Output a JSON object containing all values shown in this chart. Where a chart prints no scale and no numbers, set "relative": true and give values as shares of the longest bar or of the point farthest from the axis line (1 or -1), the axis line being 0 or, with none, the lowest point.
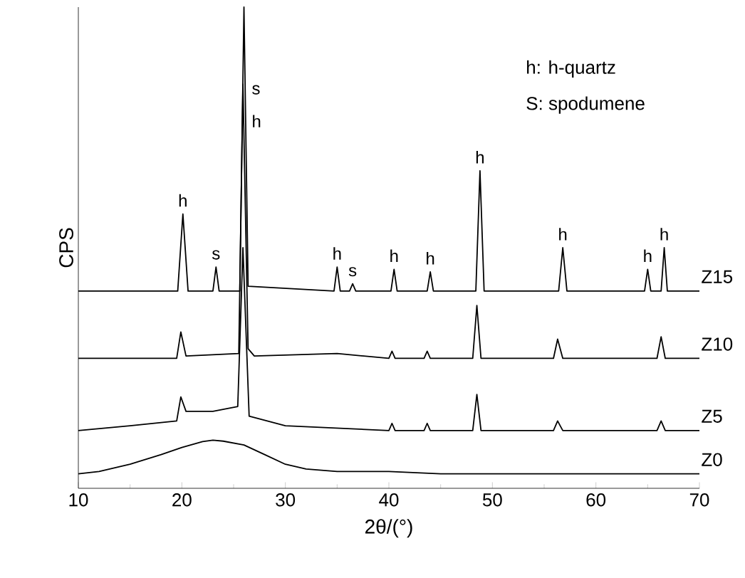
{
  "chart_data": {
    "type": "line",
    "xlabel": "2θ/(°)",
    "ylabel": "CPS",
    "relative": true,
    "xlim": [
      10,
      70
    ],
    "xticks": [
      10,
      20,
      30,
      40,
      50,
      60,
      70
    ],
    "marker": "none",
    "line_style": "solid",
    "grid": false,
    "series": [
      {
        "name": "Z0",
        "color": "#000000",
        "x": [
          10,
          12,
          15,
          18,
          20,
          22,
          23,
          24,
          26,
          28,
          30,
          32,
          35,
          40,
          45,
          50,
          55,
          60,
          65,
          70
        ],
        "values": [
          0.03,
          0.035,
          0.05,
          0.07,
          0.085,
          0.097,
          0.1,
          0.098,
          0.09,
          0.07,
          0.05,
          0.04,
          0.035,
          0.035,
          0.03,
          0.03,
          0.03,
          0.03,
          0.03,
          0.03
        ]
      },
      {
        "name": "Z5",
        "color": "#000000",
        "x": [
          10,
          15,
          19.5,
          19.9,
          20.4,
          23,
          25.4,
          25.9,
          26.5,
          30,
          40,
          40.3,
          40.6,
          43.4,
          43.7,
          44,
          48.1,
          48.5,
          48.9,
          55.9,
          56.3,
          56.8,
          65.9,
          66.3,
          66.7,
          70
        ],
        "values": [
          0.12,
          0.13,
          0.14,
          0.19,
          0.16,
          0.16,
          0.17,
          0.5,
          0.15,
          0.13,
          0.12,
          0.135,
          0.12,
          0.12,
          0.135,
          0.12,
          0.12,
          0.195,
          0.12,
          0.12,
          0.14,
          0.12,
          0.12,
          0.14,
          0.12,
          0.12
        ]
      },
      {
        "name": "Z10",
        "color": "#000000",
        "x": [
          10,
          19.5,
          19.9,
          20.4,
          25.5,
          25.9,
          26.4,
          27,
          35,
          40,
          40.3,
          40.6,
          43.4,
          43.7,
          44,
          48.1,
          48.5,
          48.9,
          55.9,
          56.3,
          56.8,
          65.9,
          66.3,
          66.7,
          70
        ],
        "values": [
          0.27,
          0.27,
          0.325,
          0.275,
          0.28,
          0.84,
          0.29,
          0.275,
          0.28,
          0.27,
          0.285,
          0.27,
          0.27,
          0.285,
          0.27,
          0.27,
          0.38,
          0.27,
          0.27,
          0.31,
          0.27,
          0.27,
          0.315,
          0.27,
          0.27
        ]
      },
      {
        "name": "Z15",
        "color": "#000000",
        "x": [
          10,
          19.6,
          20.1,
          20.6,
          23.0,
          23.3,
          23.6,
          25.6,
          26.0,
          26.4,
          34.7,
          35.0,
          35.3,
          36.2,
          36.5,
          36.8,
          40.2,
          40.5,
          40.8,
          43.7,
          44.0,
          44.3,
          48.4,
          48.8,
          49.2,
          56.4,
          56.8,
          57.2,
          64.7,
          65.0,
          65.3,
          66.3,
          66.6,
          66.9,
          70
        ],
        "values": [
          0.41,
          0.41,
          0.57,
          0.41,
          0.41,
          0.46,
          0.41,
          0.41,
          1.0,
          0.42,
          0.41,
          0.46,
          0.41,
          0.41,
          0.425,
          0.41,
          0.41,
          0.455,
          0.41,
          0.41,
          0.45,
          0.41,
          0.41,
          0.66,
          0.41,
          0.41,
          0.5,
          0.41,
          0.41,
          0.455,
          0.41,
          0.41,
          0.5,
          0.41,
          0.41
        ]
      }
    ],
    "annotations": [
      {
        "text": "h",
        "x": 20.1,
        "y": 0.57
      },
      {
        "text": "s",
        "x": 23.3,
        "y": 0.46
      },
      {
        "text": "s",
        "x": 25.9,
        "y": 0.84
      },
      {
        "text": "h",
        "x": 25.9,
        "y": 0.84
      },
      {
        "text": "h",
        "x": 35.0,
        "y": 0.46
      },
      {
        "text": "s",
        "x": 36.5,
        "y": 0.425
      },
      {
        "text": "h",
        "x": 40.5,
        "y": 0.455
      },
      {
        "text": "h",
        "x": 44.0,
        "y": 0.45
      },
      {
        "text": "h",
        "x": 48.8,
        "y": 0.66
      },
      {
        "text": "h",
        "x": 56.8,
        "y": 0.5
      },
      {
        "text": "h",
        "x": 65.0,
        "y": 0.455
      },
      {
        "text": "h",
        "x": 66.6,
        "y": 0.5
      },
      "h:  h-quartz",
      "S: spodumene"
    ]
  }
}
